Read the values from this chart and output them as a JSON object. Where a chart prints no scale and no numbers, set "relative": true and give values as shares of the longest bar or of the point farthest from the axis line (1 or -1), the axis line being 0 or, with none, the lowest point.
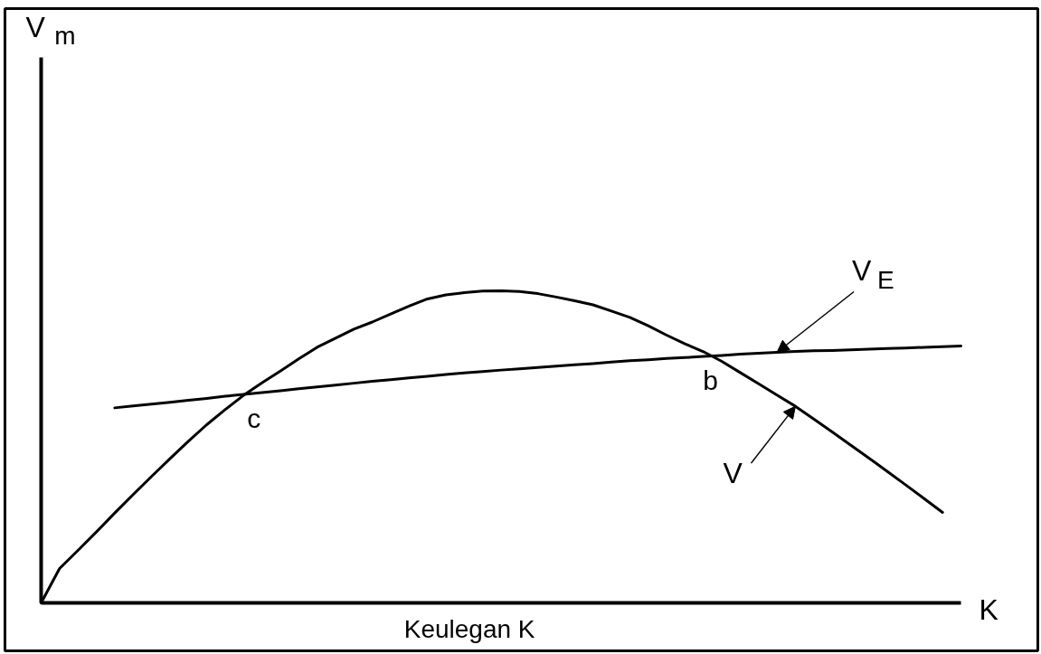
{
  "chart_data": {
    "type": "line",
    "relative": true,
    "line_style": "solid",
    "xlabel": "K",
    "annotations": [
      "V$_{m}$",
      "Keulegan K",
      "c",
      "b"
    ],
    "categories": [
      null,
      null,
      null,
      null,
      null,
      null,
      null,
      null,
      null,
      null,
      null,
      null,
      null,
      null,
      null,
      null,
      null,
      null,
      null,
      null,
      null,
      null,
      null,
      null,
      null,
      null,
      null,
      null,
      null,
      null,
      null,
      null,
      null,
      null,
      null,
      null,
      null,
      null,
      null,
      null,
      null,
      null,
      null,
      null,
      null,
      null,
      null,
      null,
      null,
      null,
      null
    ],
    "series": [
      {
        "name": "V",
        "color": "#000000",
        "values": [
          0,
          0.11,
          0.168,
          0.227,
          0.288,
          0.347,
          0.405,
          0.462,
          0.518,
          0.571,
          0.619,
          0.665,
          0.705,
          0.743,
          0.782,
          0.819,
          0.848,
          0.877,
          0.9,
          0.926,
          0.951,
          0.974,
          0.987,
          0.994,
          0.999,
          1.0,
          0.998,
          0.991,
          0.98,
          0.968,
          0.955,
          0.935,
          0.915,
          0.888,
          0.858,
          0.83,
          0.805,
          0.774,
          0.738,
          0.702,
          0.666,
          0.63,
          0.589,
          0.548,
          0.506,
          0.464,
          0.421,
          0.378,
          0.334,
          0.29,
          null
        ]
      },
      {
        "name": "V$_{E}$",
        "color": "#000000",
        "values": [
          null,
          null,
          null,
          null,
          0.625,
          0.631,
          0.637,
          0.643,
          0.649,
          0.655,
          0.662,
          0.668,
          0.674,
          0.68,
          0.686,
          0.692,
          0.698,
          0.704,
          0.71,
          0.715,
          0.721,
          0.726,
          0.732,
          0.737,
          0.741,
          0.746,
          0.75,
          0.754,
          0.759,
          0.763,
          0.767,
          0.772,
          0.776,
          0.779,
          0.783,
          0.786,
          0.79,
          0.793,
          0.797,
          0.8,
          0.803,
          0.806,
          0.808,
          0.809,
          0.811,
          0.813,
          0.815,
          0.817,
          0.819,
          0.821,
          0.823
        ]
      }
    ]
  }
}
